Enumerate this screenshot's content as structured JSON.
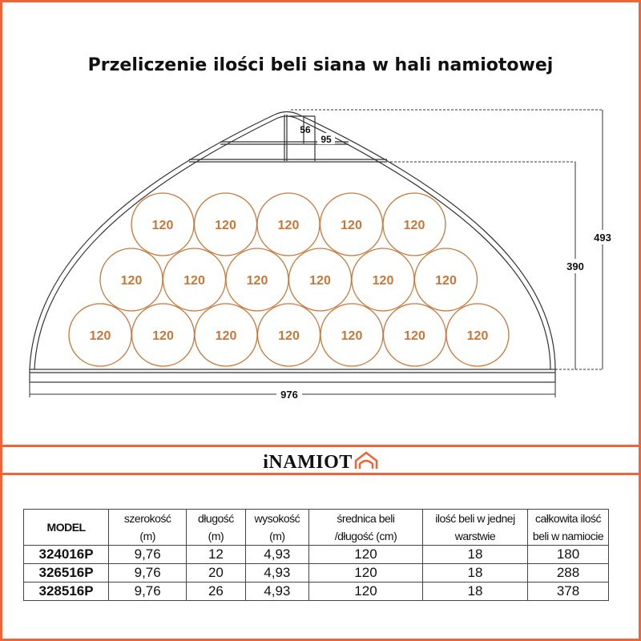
{
  "title": "Przeliczenie ilości beli siana w hali namiotowej",
  "diagram": {
    "bale_label": "120",
    "bale_rows": [
      7,
      6,
      5
    ],
    "dimensions": {
      "width": "976",
      "total_height": "493",
      "stack_height": "390",
      "top_gap_small": "56",
      "top_gap_large": "95"
    },
    "colors": {
      "accent": "#f0643a",
      "bale": "#c8773a",
      "line": "#333333"
    }
  },
  "logo": {
    "text": "iNAMIOT",
    "icon": "tent-house-icon"
  },
  "table": {
    "headers": [
      [
        "MODEL"
      ],
      [
        "szerokość",
        "(m)"
      ],
      [
        "długość",
        "(m)"
      ],
      [
        "wysokość",
        "(m)"
      ],
      [
        "średnica beli",
        "/długość (cm)"
      ],
      [
        "ilość beli w jednej",
        "warstwie"
      ],
      [
        "całkowita ilość",
        "beli w namiocie"
      ]
    ],
    "rows": [
      [
        "324016P",
        "9,76",
        "12",
        "4,93",
        "120",
        "18",
        "180"
      ],
      [
        "326516P",
        "9,76",
        "20",
        "4,93",
        "120",
        "18",
        "288"
      ],
      [
        "328516P",
        "9,76",
        "26",
        "4,93",
        "120",
        "18",
        "378"
      ]
    ]
  }
}
